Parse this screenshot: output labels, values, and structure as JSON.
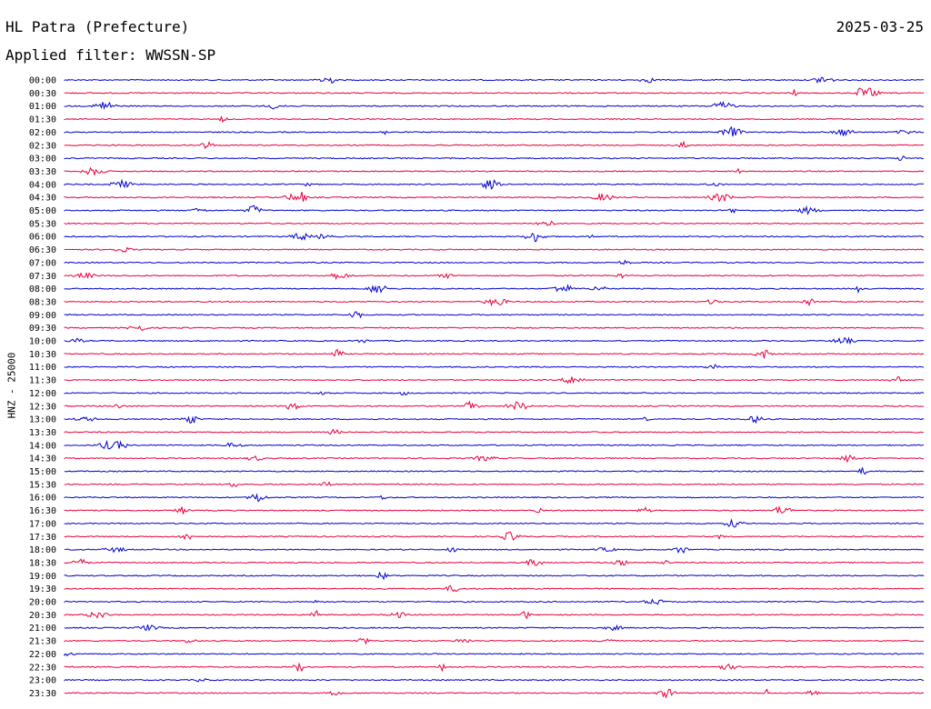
{
  "header": {
    "station": "HL Patra (Prefecture)",
    "date": "2025-03-25",
    "filter": "Applied filter: WWSSN-SP"
  },
  "chart_data": {
    "type": "line",
    "title": "HL Patra (Prefecture)",
    "subtitle": "Applied filter: WWSSN-SP",
    "ylabel": "HNZ - 25000",
    "xlabel": "",
    "categories": [
      "00:00",
      "00:30",
      "01:00",
      "01:30",
      "02:00",
      "02:30",
      "03:00",
      "03:30",
      "04:00",
      "04:30",
      "05:00",
      "05:30",
      "06:00",
      "06:30",
      "07:00",
      "07:30",
      "08:00",
      "08:30",
      "09:00",
      "09:30",
      "10:00",
      "10:30",
      "11:00",
      "11:30",
      "12:00",
      "12:30",
      "13:00",
      "13:30",
      "14:00",
      "14:30",
      "15:00",
      "15:30",
      "16:00",
      "16:30",
      "17:00",
      "17:30",
      "18:00",
      "18:30",
      "19:00",
      "19:30",
      "20:00",
      "20:30",
      "21:00",
      "21:30",
      "22:00",
      "22:30",
      "23:00",
      "23:30"
    ],
    "trace_colors": [
      "#0000cc",
      "#e8003c"
    ],
    "grid": false,
    "legend": "none"
  }
}
